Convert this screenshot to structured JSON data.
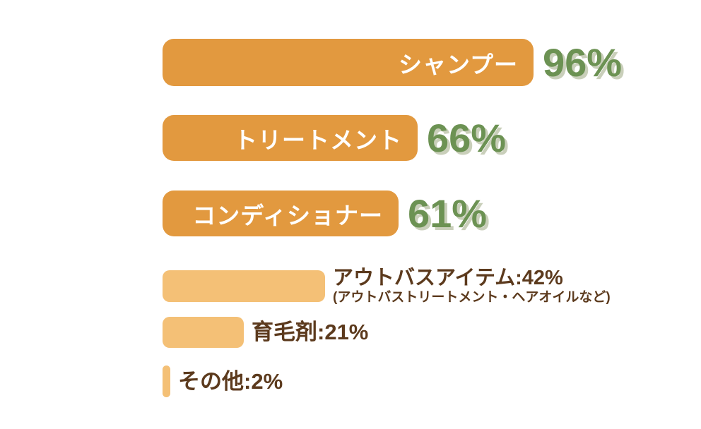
{
  "chart_data": {
    "type": "bar",
    "orientation": "horizontal",
    "unit": "%",
    "xlim": [
      0,
      100
    ],
    "title": "",
    "grid": false,
    "legend": false,
    "items": [
      {
        "label": "シャンプー",
        "value": 96,
        "percent_label": "96%",
        "bar_style": "dark",
        "label_position": "inside-bar"
      },
      {
        "label": "トリートメント",
        "value": 66,
        "percent_label": "66%",
        "bar_style": "dark",
        "label_position": "inside-bar"
      },
      {
        "label": "コンディショナー",
        "value": 61,
        "percent_label": "61%",
        "bar_style": "dark",
        "label_position": "inside-bar"
      },
      {
        "label": "アウトバスアイテム",
        "value": 42,
        "text_label": "アウトバスアイテム:42%",
        "note": "(アウトバストリートメント・ヘアオイルなど)",
        "bar_style": "light",
        "label_position": "right-of-bar"
      },
      {
        "label": "育毛剤",
        "value": 21,
        "text_label": "育毛剤:21%",
        "bar_style": "light",
        "label_position": "right-of-bar"
      },
      {
        "label": "その他",
        "value": 2,
        "text_label": "その他:2%",
        "bar_style": "light",
        "label_position": "right-of-bar"
      }
    ]
  },
  "colors": {
    "bar_dark_orange": "#E2993F",
    "bar_light_orange": "#F4C076",
    "percent_green": "#6C9253",
    "percent_shadow_sage": "#C9CFBA",
    "side_text_brown": "#5C3A1D",
    "bar_label_white": "#FFFFFF",
    "background": "#FFFFFF"
  }
}
